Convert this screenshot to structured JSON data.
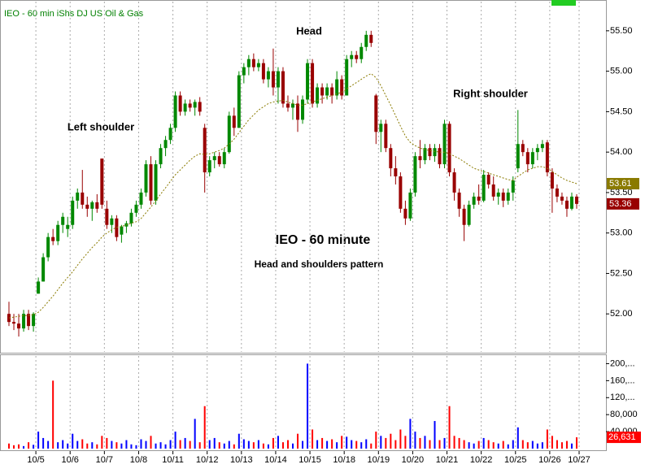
{
  "chart_data": {
    "type": "candlestick",
    "title": "IEO - 60 min  iShs DJ US Oil & Gas",
    "annotations": [
      "Head",
      "Left shoulder",
      "Right shoulder",
      "IEO - 60 minute",
      "Head and shoulders pattern"
    ],
    "up_color": "#008800",
    "down_color": "#990000",
    "ma_color": "#8a7a00",
    "volume_up_color": "#0000ff",
    "volume_down_color": "#ff0000",
    "open": [
      52.0,
      51.9,
      51.88,
      51.82,
      52.0,
      51.85,
      52.25,
      52.4,
      52.7,
      52.95,
      52.9,
      53.1,
      53.05,
      53.1,
      53.4,
      53.5,
      53.35,
      53.3,
      53.38,
      53.92,
      53.3,
      53.1,
      53.18,
      52.98,
      53.08,
      53.12,
      53.25,
      53.35,
      53.5,
      53.85,
      53.4,
      53.85,
      54.05,
      54.15,
      54.3,
      54.7,
      54.5,
      54.6,
      54.55,
      54.62,
      54.3,
      53.75,
      53.9,
      53.95,
      53.85,
      54.0,
      54.45,
      54.3,
      54.95,
      55.05,
      55.15,
      55.05,
      55.1,
      54.9,
      55.0,
      54.8,
      55.0,
      54.6,
      54.55,
      54.6,
      54.4,
      54.65,
      55.1,
      54.6,
      54.8,
      54.7,
      54.8,
      54.7,
      54.9,
      54.7,
      55.15,
      55.2,
      55.15,
      55.3,
      55.45,
      54.7,
      54.25,
      54.35,
      54.05,
      53.8,
      53.7,
      53.3,
      53.18,
      53.5,
      53.95,
      53.9,
      54.05,
      53.95,
      54.05,
      53.85,
      54.35,
      53.75,
      53.5,
      53.3,
      53.1,
      53.35,
      53.45,
      53.4,
      53.72,
      53.6,
      53.45,
      53.5,
      53.4,
      53.5,
      53.8,
      54.1,
      54.0,
      53.85,
      54.0,
      54.05,
      54.12,
      53.75,
      53.55,
      53.45,
      53.4,
      53.3,
      53.45
    ],
    "high": [
      52.15,
      52.0,
      52.0,
      52.05,
      52.05,
      52.02,
      52.45,
      52.75,
      53.0,
      53.05,
      53.15,
      53.25,
      53.2,
      53.45,
      53.55,
      53.78,
      53.45,
      53.4,
      53.48,
      53.92,
      53.4,
      53.22,
      53.22,
      53.1,
      53.15,
      53.3,
      53.4,
      53.55,
      53.9,
      53.95,
      53.9,
      54.1,
      54.2,
      54.35,
      54.75,
      54.75,
      54.65,
      54.65,
      54.65,
      54.68,
      54.35,
      53.95,
      54.0,
      54.0,
      54.05,
      54.5,
      54.55,
      55.0,
      55.1,
      55.2,
      55.22,
      55.15,
      55.15,
      55.05,
      55.28,
      55.05,
      55.05,
      54.7,
      54.65,
      54.7,
      54.7,
      55.15,
      55.15,
      54.85,
      54.85,
      54.85,
      54.85,
      55.0,
      54.95,
      55.2,
      55.25,
      55.25,
      55.35,
      55.5,
      55.5,
      54.72,
      54.4,
      54.4,
      54.1,
      53.95,
      53.75,
      53.4,
      53.55,
      54.0,
      54.15,
      54.1,
      54.1,
      54.1,
      54.1,
      54.4,
      54.38,
      53.8,
      53.55,
      53.35,
      53.4,
      53.5,
      53.6,
      53.78,
      53.75,
      53.7,
      53.55,
      53.55,
      53.55,
      53.7,
      54.52,
      54.15,
      54.05,
      54.05,
      54.1,
      54.15,
      54.15,
      53.8,
      53.6,
      53.5,
      53.45,
      53.5,
      53.48
    ],
    "low": [
      51.85,
      51.8,
      51.72,
      51.78,
      51.8,
      51.78,
      52.25,
      52.4,
      52.65,
      52.85,
      52.85,
      53.0,
      52.95,
      53.05,
      53.3,
      53.3,
      53.2,
      53.15,
      53.25,
      53.3,
      53.05,
      53.0,
      52.9,
      52.88,
      53.0,
      53.08,
      53.2,
      53.3,
      53.45,
      53.35,
      53.35,
      53.8,
      53.95,
      54.1,
      54.25,
      54.45,
      54.45,
      54.5,
      54.45,
      54.45,
      53.5,
      53.7,
      53.8,
      53.82,
      53.8,
      53.98,
      54.2,
      54.3,
      54.85,
      54.95,
      55.0,
      55.0,
      54.85,
      54.8,
      54.7,
      54.6,
      54.55,
      54.5,
      54.4,
      54.25,
      54.35,
      54.6,
      54.55,
      54.55,
      54.6,
      54.65,
      54.6,
      54.65,
      54.65,
      54.7,
      55.05,
      55.1,
      55.1,
      55.25,
      55.3,
      54.1,
      54.0,
      54.0,
      53.7,
      53.6,
      53.25,
      53.1,
      53.15,
      53.45,
      53.8,
      53.85,
      53.9,
      53.88,
      53.8,
      53.8,
      53.7,
      53.4,
      53.2,
      52.9,
      53.08,
      53.3,
      53.35,
      53.38,
      53.55,
      53.4,
      53.35,
      53.32,
      53.35,
      53.4,
      53.75,
      53.95,
      53.75,
      53.8,
      53.9,
      54.0,
      53.7,
      53.25,
      53.38,
      53.35,
      53.2,
      53.28,
      53.3
    ],
    "close": [
      51.9,
      51.88,
      51.82,
      52.0,
      51.85,
      52.0,
      52.4,
      52.7,
      52.95,
      52.9,
      53.1,
      53.2,
      53.1,
      53.4,
      53.5,
      53.35,
      53.3,
      53.38,
      53.3,
      53.35,
      53.1,
      53.18,
      52.95,
      53.08,
      53.12,
      53.25,
      53.35,
      53.5,
      53.85,
      53.4,
      53.85,
      54.05,
      54.15,
      54.3,
      54.7,
      54.5,
      54.6,
      54.55,
      54.62,
      54.5,
      53.75,
      53.9,
      53.95,
      53.85,
      54.0,
      54.45,
      54.3,
      54.95,
      55.05,
      55.15,
      55.05,
      55.1,
      54.9,
      55.0,
      54.8,
      55.0,
      54.6,
      54.55,
      54.6,
      54.4,
      54.65,
      55.1,
      54.6,
      54.8,
      54.7,
      54.8,
      54.7,
      54.9,
      54.7,
      55.15,
      55.2,
      55.15,
      55.3,
      55.45,
      55.35,
      54.25,
      54.35,
      54.05,
      53.8,
      53.7,
      53.3,
      53.18,
      53.5,
      53.95,
      53.9,
      54.05,
      53.95,
      54.05,
      53.85,
      54.35,
      53.75,
      53.5,
      53.3,
      53.1,
      53.35,
      53.45,
      53.4,
      53.72,
      53.6,
      53.45,
      53.5,
      53.4,
      53.5,
      53.65,
      54.1,
      54.0,
      53.85,
      54.0,
      54.05,
      54.1,
      53.75,
      53.55,
      53.45,
      53.4,
      53.3,
      53.45,
      53.36
    ],
    "ma": [
      51.95,
      51.96,
      51.97,
      51.98,
      51.98,
      51.99,
      52.02,
      52.08,
      52.15,
      52.22,
      52.3,
      52.38,
      52.45,
      52.52,
      52.6,
      52.68,
      52.75,
      52.82,
      52.88,
      52.95,
      53.0,
      53.04,
      53.07,
      53.08,
      53.1,
      53.12,
      53.14,
      53.18,
      53.25,
      53.32,
      53.4,
      53.48,
      53.56,
      53.64,
      53.72,
      53.78,
      53.84,
      53.9,
      53.95,
      53.98,
      53.97,
      53.98,
      54.0,
      54.02,
      54.05,
      54.1,
      54.16,
      54.24,
      54.32,
      54.4,
      54.46,
      54.52,
      54.56,
      54.6,
      54.62,
      54.63,
      54.64,
      54.62,
      54.6,
      54.58,
      54.58,
      54.6,
      54.62,
      54.64,
      54.66,
      54.68,
      54.7,
      54.72,
      54.74,
      54.78,
      54.82,
      54.86,
      54.9,
      54.94,
      54.97,
      54.92,
      54.82,
      54.7,
      54.58,
      54.45,
      54.32,
      54.2,
      54.12,
      54.08,
      54.05,
      54.03,
      54.02,
      54.01,
      54.0,
      54.0,
      53.98,
      53.95,
      53.92,
      53.88,
      53.84,
      53.8,
      53.78,
      53.76,
      53.74,
      53.72,
      53.7,
      53.68,
      53.66,
      53.65,
      53.7,
      53.74,
      53.78,
      53.8,
      53.82,
      53.82,
      53.8,
      53.76,
      53.72,
      53.68,
      53.65,
      53.63,
      53.61
    ],
    "volume": [
      12000,
      8000,
      10000,
      6000,
      15000,
      9000,
      40000,
      25000,
      18000,
      160000,
      15000,
      20000,
      12000,
      35000,
      18000,
      22000,
      12000,
      15000,
      10000,
      30000,
      25000,
      18000,
      15000,
      12000,
      20000,
      10000,
      8000,
      22000,
      18000,
      30000,
      12000,
      15000,
      10000,
      20000,
      40000,
      20000,
      25000,
      18000,
      70000,
      15000,
      100000,
      20000,
      25000,
      15000,
      12000,
      18000,
      10000,
      35000,
      22000,
      18000,
      15000,
      20000,
      12000,
      10000,
      25000,
      30000,
      15000,
      20000,
      12000,
      35000,
      18000,
      200000,
      45000,
      20000,
      25000,
      18000,
      22000,
      15000,
      30000,
      28000,
      20000,
      18000,
      15000,
      22000,
      12000,
      40000,
      30000,
      25000,
      35000,
      20000,
      45000,
      30000,
      70000,
      40000,
      25000,
      30000,
      20000,
      65000,
      20000,
      25000,
      100000,
      30000,
      25000,
      20000,
      15000,
      12000,
      18000,
      25000,
      20000,
      15000,
      12000,
      18000,
      10000,
      20000,
      50000,
      20000,
      15000,
      18000,
      12000,
      15000,
      45000,
      30000,
      20000,
      15000,
      18000,
      12000,
      26631
    ],
    "volume_label": {
      "value": 26631,
      "label": "26,631"
    },
    "xlim": [
      0,
      117
    ],
    "xticks": [
      {
        "value": 6,
        "label": "10/5"
      },
      {
        "value": 13,
        "label": "10/6"
      },
      {
        "value": 20,
        "label": "10/7"
      },
      {
        "value": 27,
        "label": "10/8"
      },
      {
        "value": 34,
        "label": "10/11"
      },
      {
        "value": 41,
        "label": "10/12"
      },
      {
        "value": 48,
        "label": "10/13"
      },
      {
        "value": 55,
        "label": "10/14"
      },
      {
        "value": 62,
        "label": "10/15"
      },
      {
        "value": 69,
        "label": "10/18"
      },
      {
        "value": 76,
        "label": "10/19"
      },
      {
        "value": 83,
        "label": "10/20"
      },
      {
        "value": 90,
        "label": "10/21"
      },
      {
        "value": 97,
        "label": "10/22"
      },
      {
        "value": 104,
        "label": "10/25"
      },
      {
        "value": 111,
        "label": "10/26"
      },
      {
        "value": 117,
        "label": "10/27"
      }
    ],
    "ylim": [
      51.53,
      55.78
    ],
    "yticks": [
      {
        "value": 52,
        "label": "52.00"
      },
      {
        "value": 52.5,
        "label": "52.50"
      },
      {
        "value": 53,
        "label": "53.00"
      },
      {
        "value": 53.5,
        "label": "53.50"
      },
      {
        "value": 54,
        "label": "54.00"
      },
      {
        "value": 54.5,
        "label": "54.50"
      },
      {
        "value": 55,
        "label": "55.00"
      },
      {
        "value": 55.5,
        "label": "55.50"
      }
    ],
    "volume_ylim": [
      0,
      220000
    ],
    "volume_yticks": [
      {
        "value": 40000,
        "label": "40,000"
      },
      {
        "value": 80000,
        "label": "80,000"
      },
      {
        "value": 120000,
        "label": "120,..."
      },
      {
        "value": 160000,
        "label": "160,..."
      },
      {
        "value": 200000,
        "label": "200,..."
      }
    ]
  }
}
